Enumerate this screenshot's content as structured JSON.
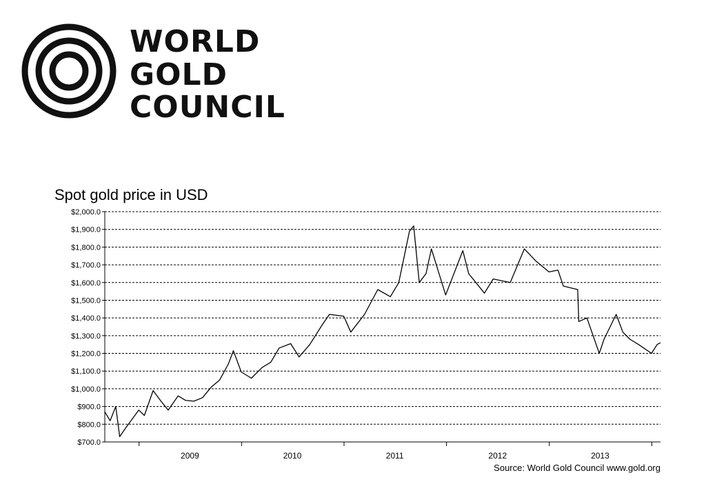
{
  "logo": {
    "lines": [
      "WORLD",
      "GOLD",
      "COUNCIL"
    ]
  },
  "chart_data": {
    "type": "line",
    "title": "Spot gold price in USD",
    "xlabel": "",
    "ylabel": "",
    "ylim": [
      700,
      2000
    ],
    "y_ticks": [
      "$2,000.0",
      "$1,900.0",
      "$1,800.0",
      "$1,700.0",
      "$1,600.0",
      "$1,500.0",
      "$1,400.0",
      "$1,300.0",
      "$1,200.0",
      "$1,100.0",
      "$1,000.0",
      "$900.0",
      "$800.0",
      "$700.0"
    ],
    "x_ticks": [
      "2009",
      "2010",
      "2011",
      "2012",
      "2013"
    ],
    "xlim": [
      "2008-09-01",
      "2014-02-01"
    ],
    "grid": "horizontal dashed",
    "legend": "none",
    "series": [
      {
        "color": "#000000",
        "points": [
          [
            "2008-09-01",
            870
          ],
          [
            "2008-09-20",
            820
          ],
          [
            "2008-10-10",
            900
          ],
          [
            "2008-10-24",
            730
          ],
          [
            "2008-11-15",
            780
          ],
          [
            "2008-12-31",
            880
          ],
          [
            "2009-01-20",
            850
          ],
          [
            "2009-02-20",
            990
          ],
          [
            "2009-03-20",
            930
          ],
          [
            "2009-04-15",
            880
          ],
          [
            "2009-05-20",
            960
          ],
          [
            "2009-06-15",
            935
          ],
          [
            "2009-07-15",
            930
          ],
          [
            "2009-08-15",
            950
          ],
          [
            "2009-09-15",
            1010
          ],
          [
            "2009-10-15",
            1050
          ],
          [
            "2009-11-15",
            1140
          ],
          [
            "2009-12-03",
            1215
          ],
          [
            "2009-12-31",
            1095
          ],
          [
            "2010-02-05",
            1060
          ],
          [
            "2010-03-15",
            1120
          ],
          [
            "2010-04-15",
            1150
          ],
          [
            "2010-05-15",
            1230
          ],
          [
            "2010-06-25",
            1255
          ],
          [
            "2010-07-25",
            1180
          ],
          [
            "2010-09-01",
            1250
          ],
          [
            "2010-10-15",
            1360
          ],
          [
            "2010-11-10",
            1420
          ],
          [
            "2010-12-31",
            1410
          ],
          [
            "2011-01-25",
            1320
          ],
          [
            "2011-03-15",
            1420
          ],
          [
            "2011-05-01",
            1560
          ],
          [
            "2011-06-15",
            1520
          ],
          [
            "2011-07-15",
            1600
          ],
          [
            "2011-08-22",
            1890
          ],
          [
            "2011-09-06",
            1920
          ],
          [
            "2011-09-26",
            1600
          ],
          [
            "2011-10-20",
            1650
          ],
          [
            "2011-11-08",
            1790
          ],
          [
            "2011-12-29",
            1530
          ],
          [
            "2012-02-28",
            1780
          ],
          [
            "2012-03-20",
            1650
          ],
          [
            "2012-05-15",
            1540
          ],
          [
            "2012-06-15",
            1620
          ],
          [
            "2012-08-15",
            1600
          ],
          [
            "2012-10-04",
            1790
          ],
          [
            "2012-11-15",
            1720
          ],
          [
            "2012-12-31",
            1660
          ],
          [
            "2013-02-01",
            1670
          ],
          [
            "2013-02-20",
            1580
          ],
          [
            "2013-04-12",
            1560
          ],
          [
            "2013-04-16",
            1380
          ],
          [
            "2013-05-15",
            1400
          ],
          [
            "2013-06-28",
            1200
          ],
          [
            "2013-07-15",
            1280
          ],
          [
            "2013-08-27",
            1420
          ],
          [
            "2013-09-20",
            1320
          ],
          [
            "2013-10-15",
            1280
          ],
          [
            "2013-11-15",
            1250
          ],
          [
            "2013-12-31",
            1200
          ],
          [
            "2014-01-20",
            1250
          ],
          [
            "2014-02-01",
            1260
          ]
        ]
      }
    ]
  },
  "footer": {
    "source": "Source: World Gold Council www.gold.org"
  }
}
